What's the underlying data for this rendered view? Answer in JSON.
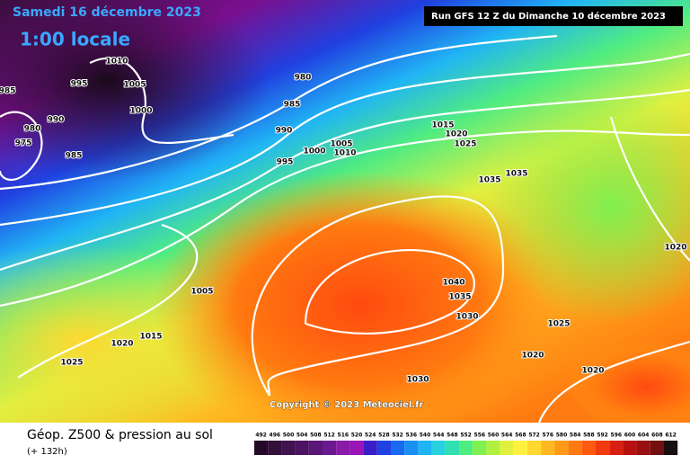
{
  "header": {
    "date": "Samedi 16 décembre 2023",
    "time": "1:00 locale",
    "run": "Run GFS 12 Z du Dimanche 10 décembre 2023"
  },
  "copyright": "Copyright © 2023 Meteociel.fr",
  "footer": {
    "title": "Géop. Z500 & pression au sol",
    "lead": "(+ 132h)"
  },
  "isobar_labels": [
    1010,
    1005,
    1000,
    995,
    985,
    990,
    980,
    975,
    985,
    980,
    985,
    990,
    995,
    1000,
    1005,
    1010,
    1015,
    1020,
    1025,
    1035,
    1035,
    1020,
    1005,
    1040,
    1035,
    1030,
    1025,
    1015,
    1020,
    1025,
    1020,
    1020,
    1030
  ],
  "legend": {
    "ticks": [
      492,
      496,
      500,
      504,
      508,
      512,
      516,
      520,
      524,
      528,
      532,
      536,
      540,
      544,
      548,
      552,
      556,
      560,
      564,
      568,
      572,
      576,
      580,
      584,
      588,
      592,
      596,
      600,
      604,
      608,
      612
    ],
    "colors": [
      "#230a26",
      "#33103a",
      "#40124e",
      "#4c1463",
      "#5a1678",
      "#6a1a8e",
      "#8a1aa8",
      "#9a14b8",
      "#3a1ec8",
      "#2040e0",
      "#1a6af0",
      "#1a90f5",
      "#20b4f5",
      "#28d0e0",
      "#30e0b0",
      "#50ec80",
      "#80f050",
      "#b0f040",
      "#e0f040",
      "#fff040",
      "#ffd830",
      "#ffb820",
      "#ff9a18",
      "#ff7a10",
      "#ff5a10",
      "#f03a10",
      "#d82010",
      "#b81010",
      "#981010",
      "#701010",
      "#181010"
    ]
  }
}
